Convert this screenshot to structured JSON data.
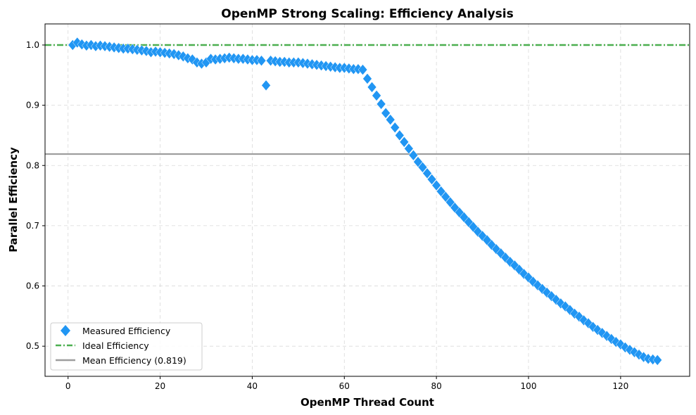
{
  "chart_data": {
    "type": "scatter",
    "title": "OpenMP Strong Scaling: Efficiency Analysis",
    "xlabel": "OpenMP Thread Count",
    "ylabel": "Parallel Efficiency",
    "xlim": [
      -5,
      135
    ],
    "ylim": [
      0.45,
      1.035
    ],
    "xticks": [
      0,
      20,
      40,
      60,
      80,
      100,
      120
    ],
    "yticks": [
      0.5,
      0.6,
      0.7,
      0.8,
      0.9,
      1.0
    ],
    "ytick_labels": [
      "0.5",
      "0.6",
      "0.7",
      "0.8",
      "0.9",
      "1.0"
    ],
    "grid": true,
    "legend_position": "lower-left",
    "series": [
      {
        "name": "Measured Efficiency",
        "marker": "diamond",
        "color": "#2196F3",
        "x": [
          1,
          2,
          3,
          4,
          5,
          6,
          7,
          8,
          9,
          10,
          11,
          12,
          13,
          14,
          15,
          16,
          17,
          18,
          19,
          20,
          21,
          22,
          23,
          24,
          25,
          26,
          27,
          28,
          29,
          30,
          31,
          32,
          33,
          34,
          35,
          36,
          37,
          38,
          39,
          40,
          41,
          42,
          43,
          44,
          45,
          46,
          47,
          48,
          49,
          50,
          51,
          52,
          53,
          54,
          55,
          56,
          57,
          58,
          59,
          60,
          61,
          62,
          63,
          64,
          65,
          66,
          67,
          68,
          69,
          70,
          71,
          72,
          73,
          74,
          75,
          76,
          77,
          78,
          79,
          80,
          81,
          82,
          83,
          84,
          85,
          86,
          87,
          88,
          89,
          90,
          91,
          92,
          93,
          94,
          95,
          96,
          97,
          98,
          99,
          100,
          101,
          102,
          103,
          104,
          105,
          106,
          107,
          108,
          109,
          110,
          111,
          112,
          113,
          114,
          115,
          116,
          117,
          118,
          119,
          120,
          121,
          122,
          123,
          124,
          125,
          126,
          127,
          128
        ],
        "y": [
          1.0,
          1.004,
          1.001,
          0.999,
          1.0,
          0.998,
          0.999,
          0.998,
          0.997,
          0.996,
          0.995,
          0.994,
          0.994,
          0.993,
          0.992,
          0.991,
          0.99,
          0.988,
          0.989,
          0.988,
          0.987,
          0.986,
          0.985,
          0.983,
          0.981,
          0.978,
          0.976,
          0.971,
          0.969,
          0.971,
          0.977,
          0.976,
          0.977,
          0.978,
          0.979,
          0.978,
          0.977,
          0.977,
          0.976,
          0.975,
          0.975,
          0.974,
          0.933,
          0.974,
          0.973,
          0.972,
          0.972,
          0.971,
          0.971,
          0.971,
          0.97,
          0.969,
          0.968,
          0.967,
          0.966,
          0.965,
          0.964,
          0.963,
          0.962,
          0.962,
          0.961,
          0.96,
          0.96,
          0.959,
          0.944,
          0.93,
          0.916,
          0.902,
          0.887,
          0.876,
          0.863,
          0.85,
          0.839,
          0.828,
          0.817,
          0.806,
          0.797,
          0.787,
          0.777,
          0.767,
          0.757,
          0.748,
          0.739,
          0.73,
          0.722,
          0.714,
          0.706,
          0.698,
          0.69,
          0.683,
          0.676,
          0.668,
          0.661,
          0.654,
          0.647,
          0.64,
          0.634,
          0.627,
          0.62,
          0.614,
          0.607,
          0.601,
          0.595,
          0.589,
          0.583,
          0.577,
          0.571,
          0.566,
          0.56,
          0.554,
          0.549,
          0.543,
          0.538,
          0.532,
          0.527,
          0.522,
          0.517,
          0.512,
          0.507,
          0.503,
          0.498,
          0.494,
          0.49,
          0.486,
          0.482,
          0.479,
          0.478,
          0.477
        ]
      },
      {
        "name": "Ideal Efficiency",
        "line_style": "dash-dot",
        "color": "#4CAF50",
        "y_value": 1.0
      },
      {
        "name": "Mean Efficiency (0.819)",
        "line_style": "solid",
        "color": "#9E9E9E",
        "y_value": 0.819
      }
    ]
  }
}
